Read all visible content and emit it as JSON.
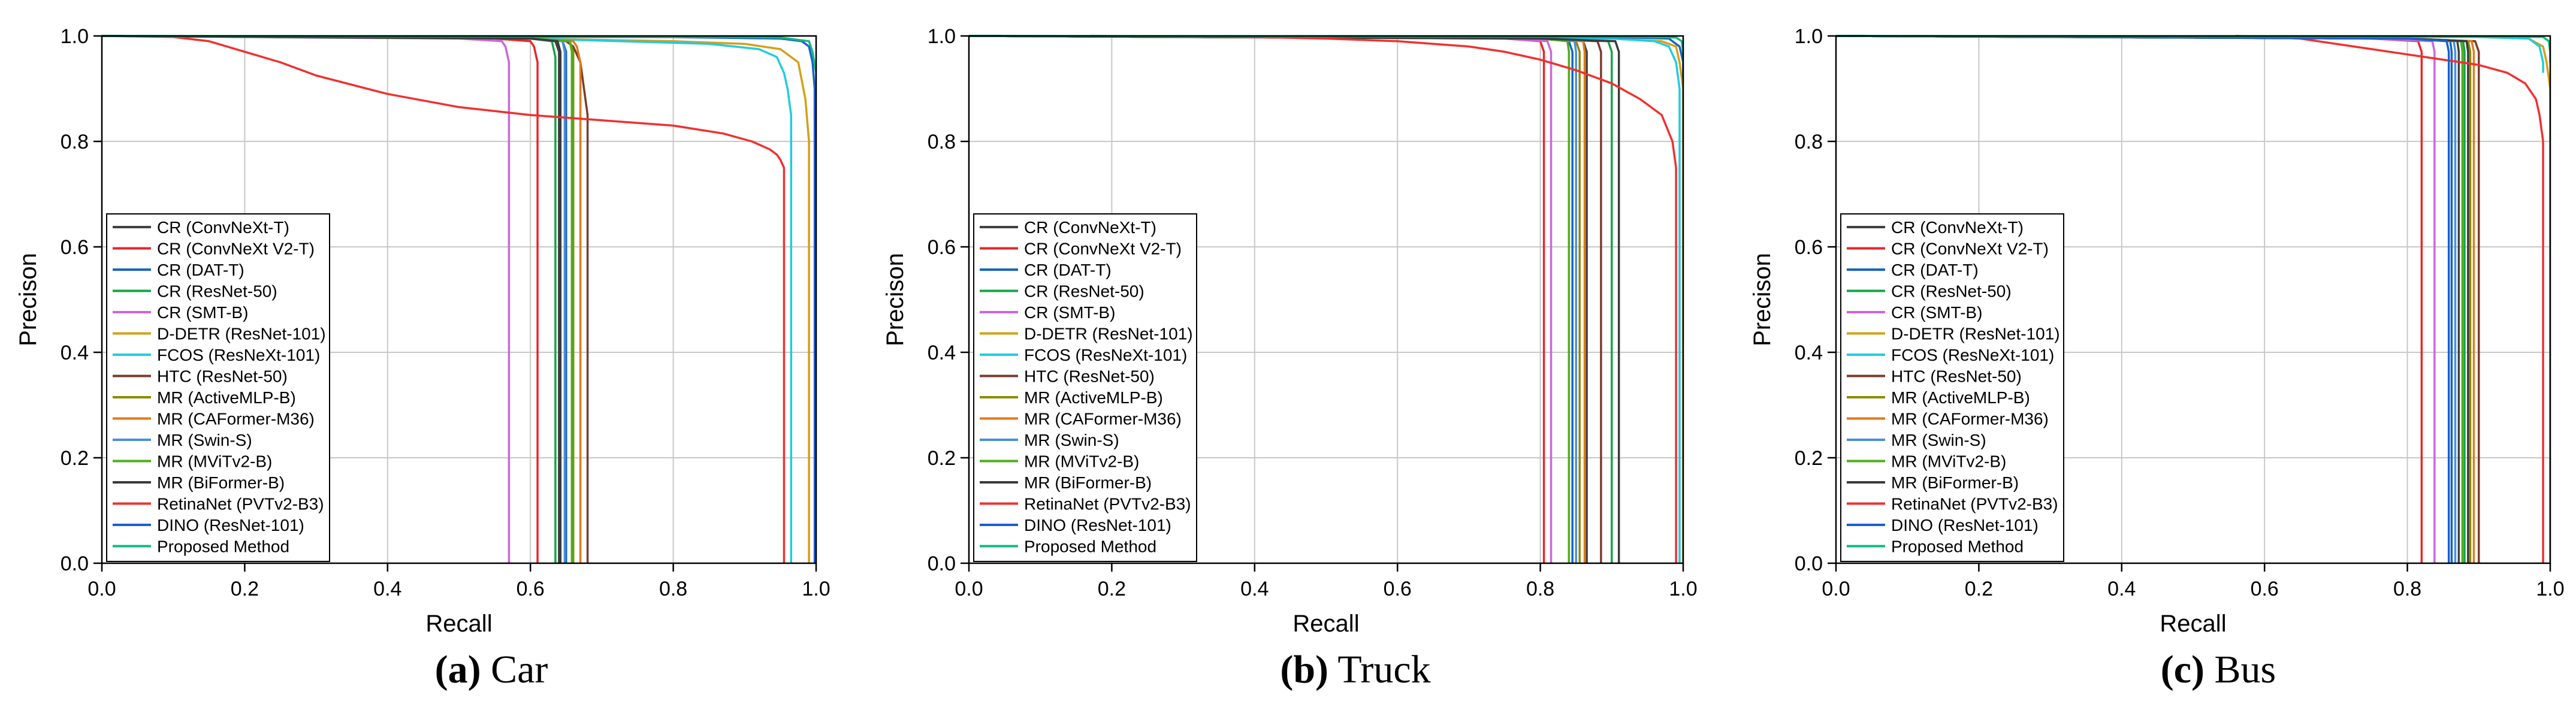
{
  "legend_entries": [
    "CR (ConvNeXt-T)",
    "CR (ConvNeXt V2-T)",
    "CR (DAT-T)",
    "CR (ResNet-50)",
    "CR (SMT-B)",
    "D-DETR (ResNet-101)",
    "FCOS (ResNeXt-101)",
    "HTC (ResNet-50)",
    "MR (ActiveMLP-B)",
    "MR (CAFormer-M36)",
    "MR (Swin-S)",
    "MR (MViTv2-B)",
    "MR (BiFormer-B)",
    "RetinaNet (PVTv2-B3)",
    "DINO (ResNet-101)",
    "Proposed Method"
  ],
  "series_colors": [
    "#404040",
    "#e8262a",
    "#1565c0",
    "#16a34a",
    "#cc66dd",
    "#d4a017",
    "#22ccdd",
    "#7a3b2e",
    "#8a8a00",
    "#e07b1a",
    "#4a90d9",
    "#4caf1a",
    "#3a3a3a",
    "#f03030",
    "#1a5fcf",
    "#10b981"
  ],
  "chart_data": [
    {
      "type": "line",
      "panel": "a",
      "caption_letter": "(a)",
      "caption_text": " Car",
      "xlabel": "Recall",
      "ylabel": "Precison",
      "xlim": [
        0.0,
        1.0
      ],
      "ylim": [
        0.0,
        1.0
      ],
      "xticks": [
        "0.0",
        "0.2",
        "0.4",
        "0.6",
        "0.8",
        "1.0"
      ],
      "yticks": [
        "0.0",
        "0.2",
        "0.4",
        "0.6",
        "0.8",
        "1.0"
      ],
      "grid": true,
      "legend_position": "left",
      "series": [
        {
          "name": "CR (ConvNeXt-T)",
          "x": [
            0,
            0.6,
            0.635,
            0.64,
            0.64
          ],
          "y": [
            1,
            0.995,
            0.99,
            0.97,
            0
          ]
        },
        {
          "name": "CR (ConvNeXt V2-T)",
          "x": [
            0,
            0.55,
            0.6,
            0.605,
            0.61,
            0.61
          ],
          "y": [
            1,
            0.995,
            0.99,
            0.98,
            0.95,
            0
          ]
        },
        {
          "name": "CR (DAT-T)",
          "x": [
            0,
            0.6,
            0.645,
            0.65,
            0.65
          ],
          "y": [
            1,
            0.995,
            0.99,
            0.97,
            0
          ]
        },
        {
          "name": "CR (ResNet-50)",
          "x": [
            0,
            0.6,
            0.63,
            0.635,
            0.635
          ],
          "y": [
            1,
            0.995,
            0.99,
            0.96,
            0
          ]
        },
        {
          "name": "CR (SMT-B)",
          "x": [
            0,
            0.5,
            0.56,
            0.565,
            0.57,
            0.57
          ],
          "y": [
            1,
            0.995,
            0.99,
            0.98,
            0.95,
            0
          ]
        },
        {
          "name": "D-DETR (ResNet-101)",
          "x": [
            0,
            0.6,
            0.8,
            0.9,
            0.95,
            0.975,
            0.985,
            0.99,
            0.99
          ],
          "y": [
            1,
            0.995,
            0.99,
            0.985,
            0.975,
            0.95,
            0.88,
            0.8,
            0
          ]
        },
        {
          "name": "FCOS (ResNeXt-101)",
          "x": [
            0,
            0.6,
            0.85,
            0.92,
            0.945,
            0.955,
            0.96,
            0.965,
            0.965
          ],
          "y": [
            1,
            0.995,
            0.985,
            0.975,
            0.96,
            0.93,
            0.9,
            0.85,
            0
          ]
        },
        {
          "name": "HTC (ResNet-50)",
          "x": [
            0,
            0.6,
            0.65,
            0.66,
            0.67,
            0.675,
            0.68,
            0.68
          ],
          "y": [
            1,
            0.995,
            0.99,
            0.98,
            0.95,
            0.9,
            0.85,
            0
          ]
        },
        {
          "name": "MR (ActiveMLP-B)",
          "x": [
            0,
            0.6,
            0.655,
            0.66,
            0.66
          ],
          "y": [
            1,
            0.995,
            0.99,
            0.97,
            0
          ]
        },
        {
          "name": "MR (CAFormer-M36)",
          "x": [
            0,
            0.6,
            0.66,
            0.665,
            0.67,
            0.67
          ],
          "y": [
            1,
            0.995,
            0.99,
            0.98,
            0.95,
            0
          ]
        },
        {
          "name": "MR (Swin-S)",
          "x": [
            0,
            0.6,
            0.645,
            0.648,
            0.648
          ],
          "y": [
            1,
            0.995,
            0.99,
            0.97,
            0
          ]
        },
        {
          "name": "MR (MViTv2-B)",
          "x": [
            0,
            0.6,
            0.655,
            0.658,
            0.658
          ],
          "y": [
            1,
            0.995,
            0.99,
            0.97,
            0
          ]
        },
        {
          "name": "MR (BiFormer-B)",
          "x": [
            0,
            0.6,
            0.638,
            0.642,
            0.642
          ],
          "y": [
            1,
            0.995,
            0.99,
            0.97,
            0
          ]
        },
        {
          "name": "RetinaNet (PVTv2-B3)",
          "x": [
            0,
            0.1,
            0.15,
            0.2,
            0.25,
            0.3,
            0.4,
            0.5,
            0.6,
            0.7,
            0.8,
            0.87,
            0.91,
            0.935,
            0.945,
            0.95,
            0.955,
            0.955
          ],
          "y": [
            1,
            0.998,
            0.99,
            0.97,
            0.95,
            0.925,
            0.89,
            0.865,
            0.85,
            0.84,
            0.83,
            0.815,
            0.8,
            0.785,
            0.775,
            0.765,
            0.75,
            0
          ]
        },
        {
          "name": "DINO (ResNet-101)",
          "x": [
            0,
            0.8,
            0.95,
            0.98,
            0.99,
            0.995,
            0.998,
            0.998
          ],
          "y": [
            1,
            0.998,
            0.995,
            0.99,
            0.98,
            0.95,
            0.9,
            0
          ]
        },
        {
          "name": "Proposed Method",
          "x": [
            0,
            0.8,
            0.95,
            0.99,
            0.995,
            1.0,
            1.0
          ],
          "y": [
            1,
            0.999,
            0.997,
            0.99,
            0.97,
            0.93,
            0.9
          ]
        }
      ]
    },
    {
      "type": "line",
      "panel": "b",
      "caption_letter": "(b)",
      "caption_text": " Truck",
      "xlabel": "Recall",
      "ylabel": "Precison",
      "xlim": [
        0.0,
        1.0
      ],
      "ylim": [
        0.0,
        1.0
      ],
      "xticks": [
        "0.0",
        "0.2",
        "0.4",
        "0.6",
        "0.8",
        "1.0"
      ],
      "yticks": [
        "0.0",
        "0.2",
        "0.4",
        "0.6",
        "0.8",
        "1.0"
      ],
      "grid": true,
      "legend_position": "left",
      "series": [
        {
          "name": "CR (ConvNeXt-T)",
          "x": [
            0,
            0.8,
            0.86,
            0.865,
            0.865
          ],
          "y": [
            1,
            0.995,
            0.99,
            0.97,
            0
          ]
        },
        {
          "name": "CR (ConvNeXt V2-T)",
          "x": [
            0,
            0.75,
            0.8,
            0.805,
            0.805
          ],
          "y": [
            1,
            0.995,
            0.99,
            0.97,
            0
          ]
        },
        {
          "name": "CR (DAT-T)",
          "x": [
            0,
            0.8,
            0.84,
            0.845,
            0.845
          ],
          "y": [
            1,
            0.995,
            0.99,
            0.97,
            0
          ]
        },
        {
          "name": "CR (ResNet-50)",
          "x": [
            0,
            0.8,
            0.895,
            0.9,
            0.9
          ],
          "y": [
            1,
            0.995,
            0.99,
            0.97,
            0
          ]
        },
        {
          "name": "CR (SMT-B)",
          "x": [
            0,
            0.75,
            0.81,
            0.815,
            0.815
          ],
          "y": [
            1,
            0.995,
            0.99,
            0.97,
            0
          ]
        },
        {
          "name": "D-DETR (ResNet-101)",
          "x": [
            0,
            0.9,
            0.97,
            0.99,
            0.995,
            1.0,
            1.0
          ],
          "y": [
            1,
            0.995,
            0.99,
            0.98,
            0.95,
            0.9,
            0
          ]
        },
        {
          "name": "FCOS (ResNeXt-101)",
          "x": [
            0,
            0.9,
            0.96,
            0.98,
            0.99,
            0.995,
            0.995
          ],
          "y": [
            1,
            0.995,
            0.99,
            0.98,
            0.95,
            0.9,
            0
          ]
        },
        {
          "name": "HTC (ResNet-50)",
          "x": [
            0,
            0.8,
            0.88,
            0.885,
            0.885
          ],
          "y": [
            1,
            0.995,
            0.99,
            0.97,
            0
          ]
        },
        {
          "name": "MR (ActiveMLP-B)",
          "x": [
            0,
            0.8,
            0.85,
            0.855,
            0.855
          ],
          "y": [
            1,
            0.995,
            0.99,
            0.97,
            0
          ]
        },
        {
          "name": "MR (CAFormer-M36)",
          "x": [
            0,
            0.8,
            0.86,
            0.862,
            0.862
          ],
          "y": [
            1,
            0.995,
            0.99,
            0.97,
            0
          ]
        },
        {
          "name": "MR (Swin-S)",
          "x": [
            0,
            0.8,
            0.848,
            0.85,
            0.85
          ],
          "y": [
            1,
            0.995,
            0.99,
            0.97,
            0
          ]
        },
        {
          "name": "MR (MViTv2-B)",
          "x": [
            0,
            0.8,
            0.838,
            0.84,
            0.84
          ],
          "y": [
            1,
            0.995,
            0.99,
            0.97,
            0
          ]
        },
        {
          "name": "MR (BiFormer-B)",
          "x": [
            0,
            0.8,
            0.905,
            0.91,
            0.91
          ],
          "y": [
            1,
            0.995,
            0.99,
            0.97,
            0
          ]
        },
        {
          "name": "RetinaNet (PVTv2-B3)",
          "x": [
            0.17,
            0.4,
            0.5,
            0.6,
            0.7,
            0.75,
            0.8,
            0.85,
            0.9,
            0.94,
            0.97,
            0.985,
            0.99,
            0.99
          ],
          "y": [
            1,
            0.998,
            0.995,
            0.99,
            0.98,
            0.97,
            0.955,
            0.935,
            0.91,
            0.88,
            0.85,
            0.8,
            0.75,
            0
          ]
        },
        {
          "name": "DINO (ResNet-101)",
          "x": [
            0,
            0.9,
            0.98,
            0.995,
            1.0,
            1.0
          ],
          "y": [
            1,
            0.998,
            0.995,
            0.98,
            0.95,
            0.92
          ]
        },
        {
          "name": "Proposed Method",
          "x": [
            0,
            0.9,
            0.99,
            0.998,
            1.0,
            1.0
          ],
          "y": [
            1,
            0.999,
            0.997,
            0.99,
            0.97,
            0.95
          ]
        }
      ]
    },
    {
      "type": "line",
      "panel": "c",
      "caption_letter": "(c)",
      "caption_text": " Bus",
      "xlabel": "Recall",
      "ylabel": "Precison",
      "xlim": [
        0.0,
        1.0
      ],
      "ylim": [
        0.0,
        1.0
      ],
      "xticks": [
        "0.0",
        "0.2",
        "0.4",
        "0.6",
        "0.8",
        "1.0"
      ],
      "yticks": [
        "0.0",
        "0.2",
        "0.4",
        "0.6",
        "0.8",
        "1.0"
      ],
      "grid": true,
      "legend_position": "left",
      "series": [
        {
          "name": "CR (ConvNeXt-T)",
          "x": [
            0,
            0.8,
            0.87,
            0.872,
            0.872
          ],
          "y": [
            1,
            0.995,
            0.99,
            0.97,
            0
          ]
        },
        {
          "name": "CR (ConvNeXt V2-T)",
          "x": [
            0,
            0.75,
            0.815,
            0.82,
            0.82
          ],
          "y": [
            1,
            0.995,
            0.99,
            0.97,
            0
          ]
        },
        {
          "name": "CR (DAT-T)",
          "x": [
            0,
            0.8,
            0.86,
            0.862,
            0.862
          ],
          "y": [
            1,
            0.995,
            0.99,
            0.97,
            0
          ]
        },
        {
          "name": "CR (ResNet-50)",
          "x": [
            0,
            0.8,
            0.878,
            0.88,
            0.88
          ],
          "y": [
            1,
            0.995,
            0.99,
            0.97,
            0
          ]
        },
        {
          "name": "CR (SMT-B)",
          "x": [
            0,
            0.75,
            0.835,
            0.838,
            0.838
          ],
          "y": [
            1,
            0.995,
            0.99,
            0.97,
            0
          ]
        },
        {
          "name": "D-DETR (ResNet-101)",
          "x": [
            0,
            0.9,
            0.97,
            0.99,
            0.995,
            1.0,
            1.0
          ],
          "y": [
            1,
            0.998,
            0.995,
            0.98,
            0.95,
            0.9,
            0
          ]
        },
        {
          "name": "FCOS (ResNeXt-101)",
          "x": [
            0,
            0.9,
            0.97,
            0.985,
            0.99,
            0.99
          ],
          "y": [
            1,
            0.998,
            0.995,
            0.98,
            0.95,
            0.93
          ]
        },
        {
          "name": "HTC (ResNet-50)",
          "x": [
            0,
            0.8,
            0.895,
            0.9,
            0.9
          ],
          "y": [
            1,
            0.995,
            0.99,
            0.97,
            0
          ]
        },
        {
          "name": "MR (ActiveMLP-B)",
          "x": [
            0,
            0.8,
            0.885,
            0.888,
            0.888
          ],
          "y": [
            1,
            0.995,
            0.99,
            0.97,
            0
          ]
        },
        {
          "name": "MR (CAFormer-M36)",
          "x": [
            0,
            0.8,
            0.89,
            0.893,
            0.893
          ],
          "y": [
            1,
            0.995,
            0.99,
            0.97,
            0
          ]
        },
        {
          "name": "MR (Swin-S)",
          "x": [
            0,
            0.8,
            0.865,
            0.867,
            0.867
          ],
          "y": [
            1,
            0.995,
            0.99,
            0.97,
            0
          ]
        },
        {
          "name": "MR (MViTv2-B)",
          "x": [
            0,
            0.8,
            0.875,
            0.877,
            0.877
          ],
          "y": [
            1,
            0.995,
            0.99,
            0.97,
            0
          ]
        },
        {
          "name": "MR (BiFormer-B)",
          "x": [
            0,
            0.8,
            0.883,
            0.885,
            0.885
          ],
          "y": [
            1,
            0.995,
            0.99,
            0.97,
            0
          ]
        },
        {
          "name": "RetinaNet (PVTv2-B3)",
          "x": [
            0.56,
            0.65,
            0.7,
            0.75,
            0.8,
            0.85,
            0.9,
            0.94,
            0.965,
            0.98,
            0.985,
            0.99,
            0.99
          ],
          "y": [
            1,
            0.995,
            0.985,
            0.975,
            0.965,
            0.955,
            0.945,
            0.93,
            0.91,
            0.88,
            0.85,
            0.8,
            0
          ]
        },
        {
          "name": "DINO (ResNet-101)",
          "x": [
            0,
            0.8,
            0.855,
            0.858,
            0.858
          ],
          "y": [
            1,
            0.995,
            0.99,
            0.97,
            0
          ]
        },
        {
          "name": "Proposed Method",
          "x": [
            0,
            0.9,
            0.99,
            0.998,
            1.0,
            1.0
          ],
          "y": [
            1,
            0.999,
            0.998,
            0.99,
            0.97,
            0.95
          ]
        }
      ]
    }
  ]
}
